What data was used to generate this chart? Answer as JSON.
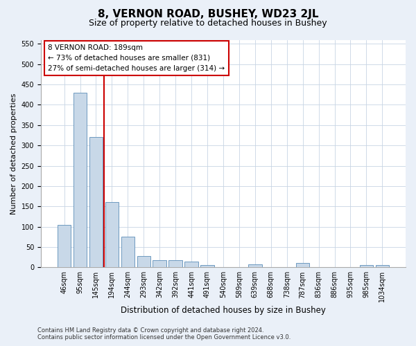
{
  "title": "8, VERNON ROAD, BUSHEY, WD23 2JL",
  "subtitle": "Size of property relative to detached houses in Bushey",
  "xlabel": "Distribution of detached houses by size in Bushey",
  "ylabel": "Number of detached properties",
  "categories": [
    "46sqm",
    "95sqm",
    "145sqm",
    "194sqm",
    "244sqm",
    "293sqm",
    "342sqm",
    "392sqm",
    "441sqm",
    "491sqm",
    "540sqm",
    "589sqm",
    "639sqm",
    "688sqm",
    "738sqm",
    "787sqm",
    "836sqm",
    "886sqm",
    "935sqm",
    "985sqm",
    "1034sqm"
  ],
  "values": [
    105,
    430,
    320,
    160,
    75,
    28,
    18,
    18,
    14,
    5,
    0,
    0,
    7,
    0,
    0,
    10,
    0,
    0,
    0,
    5,
    5
  ],
  "bar_color": "#c8d8e8",
  "bar_edge_color": "#5b8db8",
  "vline_color": "#cc0000",
  "vline_x_index": 2.5,
  "annotation_text": "8 VERNON ROAD: 189sqm\n← 73% of detached houses are smaller (831)\n27% of semi-detached houses are larger (314) →",
  "annotation_box_facecolor": "#ffffff",
  "annotation_box_edgecolor": "#cc0000",
  "ylim": [
    0,
    560
  ],
  "yticks": [
    0,
    50,
    100,
    150,
    200,
    250,
    300,
    350,
    400,
    450,
    500,
    550
  ],
  "bg_color": "#eaf0f8",
  "plot_bg_color": "#ffffff",
  "footer": "Contains HM Land Registry data © Crown copyright and database right 2024.\nContains public sector information licensed under the Open Government Licence v3.0.",
  "title_fontsize": 11,
  "subtitle_fontsize": 9,
  "xlabel_fontsize": 8.5,
  "ylabel_fontsize": 8,
  "tick_fontsize": 7,
  "annotation_fontsize": 7.5,
  "footer_fontsize": 6
}
